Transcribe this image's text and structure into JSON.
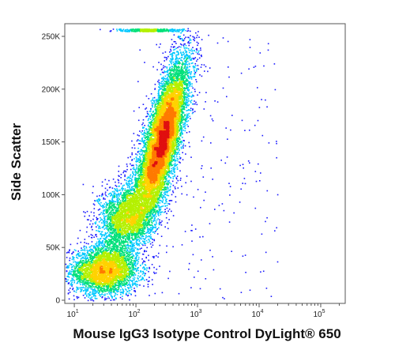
{
  "chart_data": {
    "type": "scatter",
    "title": "",
    "xlabel": "Mouse IgG3 Isotype Control DyLight® 650",
    "ylabel": "Side Scatter",
    "x_scale": "log",
    "xlim": [
      7,
      250000
    ],
    "ylim": [
      -3000,
      262000
    ],
    "x_ticks": [
      {
        "value": 10,
        "base": "10",
        "exp": "1"
      },
      {
        "value": 100,
        "base": "10",
        "exp": "2"
      },
      {
        "value": 1000,
        "base": "10",
        "exp": "3"
      },
      {
        "value": 10000,
        "base": "10",
        "exp": "4"
      },
      {
        "value": 100000,
        "base": "10",
        "exp": "5"
      }
    ],
    "y_ticks": [
      {
        "value": 0,
        "label": "0"
      },
      {
        "value": 50000,
        "label": "50K"
      },
      {
        "value": 100000,
        "label": "100K"
      },
      {
        "value": 150000,
        "label": "150K"
      },
      {
        "value": 200000,
        "label": "200K"
      },
      {
        "value": 250000,
        "label": "250K"
      }
    ],
    "grid": false,
    "legend": "none",
    "colormap": [
      "#1a1aff",
      "#00c8ff",
      "#00e07a",
      "#b4f000",
      "#ffd200",
      "#ff7a00",
      "#e01010"
    ],
    "populations": [
      {
        "x_center": 30,
        "y_center": 28000,
        "count": 3500
      },
      {
        "x_center": 70,
        "y_center": 80000,
        "count": 1800
      },
      {
        "x_center": 270,
        "y_center": 155000,
        "count": 9000
      }
    ]
  }
}
